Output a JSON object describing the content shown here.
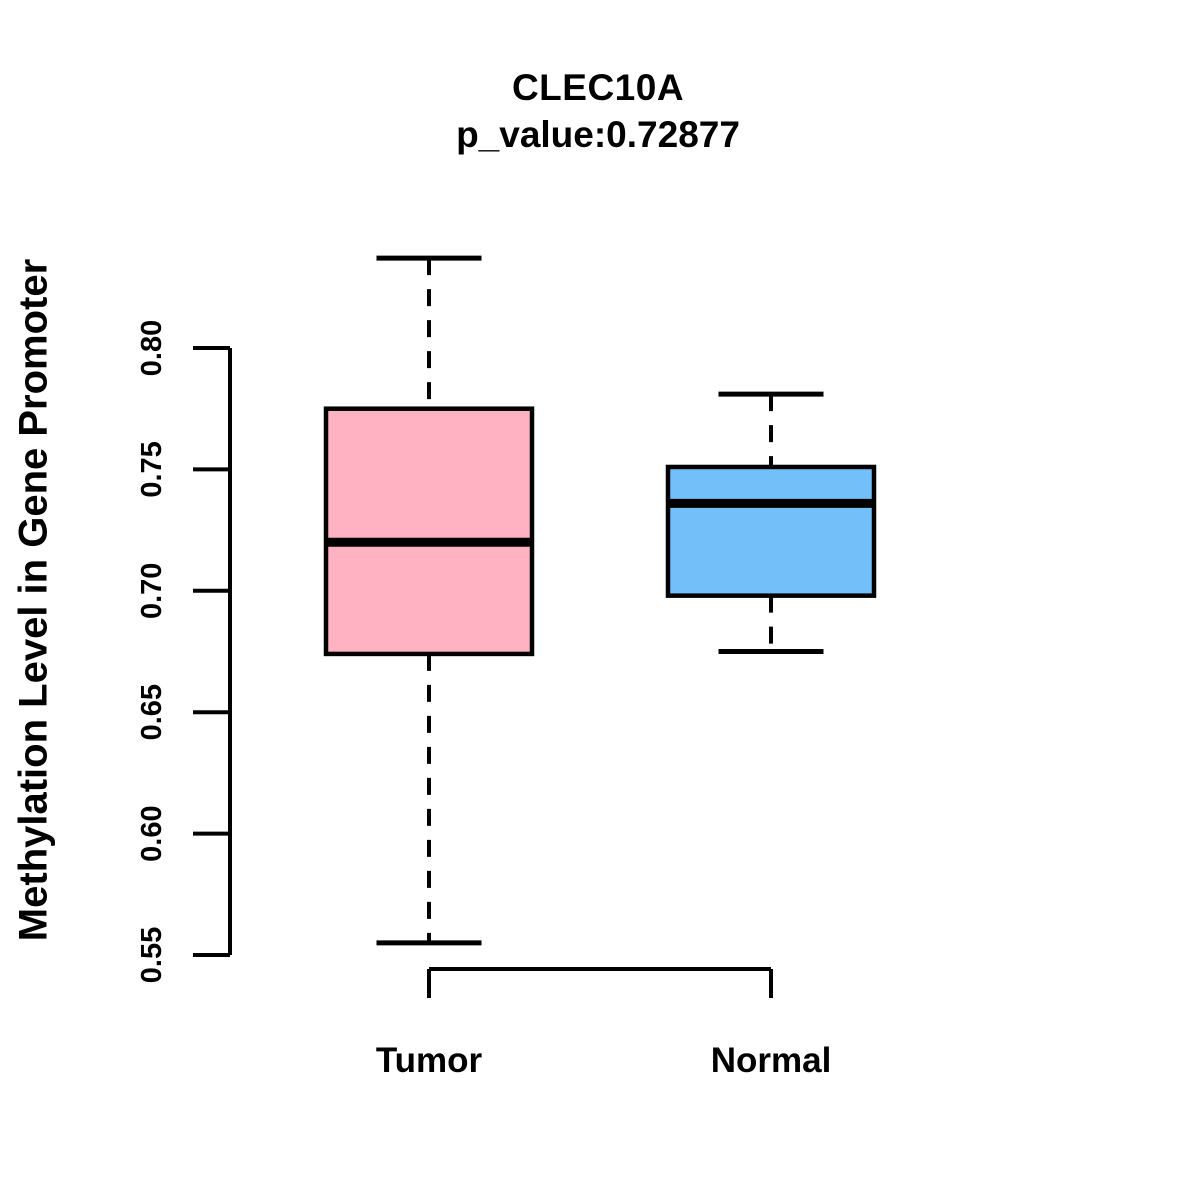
{
  "chart_data": {
    "type": "boxplot",
    "title": "CLEC10A",
    "subtitle": "p_value:0.72877",
    "ylabel": "Methylation Level in Gene Promoter",
    "xlabel": "",
    "categories": [
      "Tumor",
      "Normal"
    ],
    "ytick_labels": [
      "0.55",
      "0.60",
      "0.65",
      "0.70",
      "0.75",
      "0.80"
    ],
    "ytick_values": [
      0.55,
      0.6,
      0.65,
      0.7,
      0.75,
      0.8
    ],
    "ylim": [
      0.55,
      0.84
    ],
    "grid": false,
    "legend": "none",
    "stroke_color": "#000000",
    "background_color": "#FFFFFF",
    "series": [
      {
        "name": "Tumor",
        "fill_color": "#FFB2C1",
        "whisker_low": 0.555,
        "q1": 0.674,
        "median": 0.72,
        "q3": 0.775,
        "whisker_high": 0.837
      },
      {
        "name": "Normal",
        "fill_color": "#73BFFA",
        "whisker_low": 0.675,
        "q1": 0.698,
        "median": 0.736,
        "q3": 0.751,
        "whisker_high": 0.781
      }
    ]
  }
}
